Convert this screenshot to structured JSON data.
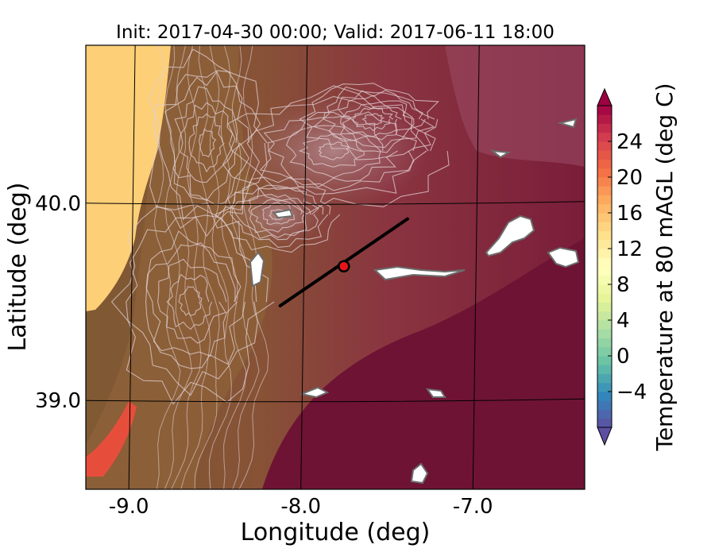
{
  "chart_data": {
    "type": "heatmap",
    "title": "Init: 2017-04-30 00:00; Valid: 2017-06-11 18:00",
    "xlabel": "Longitude (deg)",
    "ylabel": "Latitude (deg)",
    "xlim": [
      -9.25,
      -6.35
    ],
    "ylim": [
      38.55,
      40.8
    ],
    "x_ticks": [
      {
        "value": -9.0,
        "label": "-9.0"
      },
      {
        "value": -8.0,
        "label": "-8.0"
      },
      {
        "value": -7.0,
        "label": "-7.0"
      }
    ],
    "y_ticks": [
      {
        "value": 40.0,
        "label": "40.0"
      },
      {
        "value": 39.0,
        "label": "39.0"
      }
    ],
    "grid": true,
    "colorbar": {
      "label": "Temperature at 80 mAGL (deg C)",
      "range": [
        -8,
        28
      ],
      "extend": "both",
      "colormap": "Spectral_r",
      "ticks": [
        {
          "value": -4,
          "label": "−4"
        },
        {
          "value": 0,
          "label": "0"
        },
        {
          "value": 4,
          "label": "4"
        },
        {
          "value": 8,
          "label": "8"
        },
        {
          "value": 12,
          "label": "12"
        },
        {
          "value": 16,
          "label": "16"
        },
        {
          "value": 20,
          "label": "20"
        },
        {
          "value": 24,
          "label": "24"
        }
      ]
    },
    "transect": {
      "start": [
        -8.12,
        39.48
      ],
      "end": [
        -7.38,
        39.92
      ]
    },
    "marker": {
      "lon": -7.75,
      "lat": 39.68,
      "color": "#e8141a"
    },
    "colors": {
      "ocean": "#fdcf77",
      "coastal_land": "#8d6038",
      "inland": "#8c2a45",
      "interior": "#6e1334",
      "hot_patch": "#e64e3b",
      "contour": "#e0d0d4",
      "snow_patch": "#ffffff"
    }
  }
}
